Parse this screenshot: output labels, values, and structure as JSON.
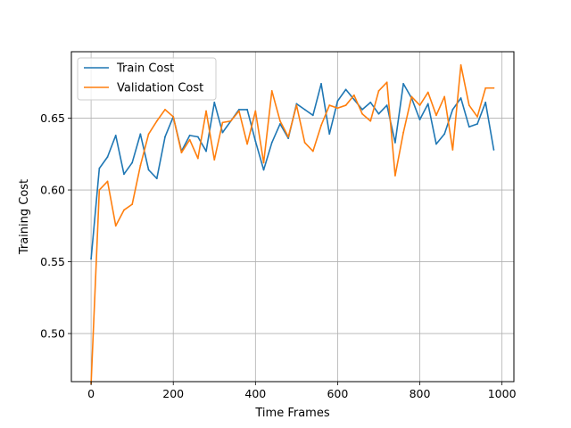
{
  "chart_data": {
    "type": "line",
    "title": "",
    "xlabel": "Time Frames",
    "ylabel": "Training Cost",
    "xlim": [
      -48,
      1029
    ],
    "ylim": [
      0.4665,
      0.6963
    ],
    "xticks": [
      0,
      200,
      400,
      600,
      800,
      1000
    ],
    "xtick_labels": [
      "0",
      "200",
      "400",
      "600",
      "800",
      "1000"
    ],
    "yticks": [
      0.5,
      0.55,
      0.6,
      0.65
    ],
    "ytick_labels": [
      "0.50",
      "0.55",
      "0.60",
      "0.65"
    ],
    "grid": true,
    "legend_position": "top-left",
    "x": [
      0,
      20,
      40,
      60,
      80,
      100,
      120,
      140,
      160,
      180,
      200,
      220,
      240,
      260,
      280,
      300,
      320,
      340,
      360,
      380,
      400,
      420,
      440,
      460,
      480,
      500,
      520,
      540,
      560,
      580,
      600,
      620,
      640,
      660,
      680,
      700,
      720,
      740,
      760,
      780,
      800,
      820,
      840,
      860,
      880,
      900,
      920,
      940,
      960,
      980
    ],
    "series": [
      {
        "name": "Train Cost",
        "color": "#1f77b4",
        "values": [
          0.552,
          0.615,
          0.623,
          0.638,
          0.611,
          0.619,
          0.639,
          0.614,
          0.608,
          0.637,
          0.651,
          0.627,
          0.638,
          0.637,
          0.627,
          0.661,
          0.64,
          0.648,
          0.656,
          0.656,
          0.634,
          0.614,
          0.633,
          0.646,
          0.636,
          0.66,
          0.656,
          0.652,
          0.674,
          0.639,
          0.662,
          0.67,
          0.663,
          0.656,
          0.661,
          0.653,
          0.659,
          0.633,
          0.674,
          0.664,
          0.649,
          0.66,
          0.632,
          0.639,
          0.656,
          0.664,
          0.644,
          0.646,
          0.661,
          0.628
        ]
      },
      {
        "name": "Validation Cost",
        "color": "#ff7f0e",
        "values": [
          0.465,
          0.6,
          0.606,
          0.575,
          0.586,
          0.59,
          0.617,
          0.639,
          0.648,
          0.656,
          0.651,
          0.626,
          0.635,
          0.622,
          0.655,
          0.621,
          0.647,
          0.648,
          0.655,
          0.632,
          0.655,
          0.619,
          0.669,
          0.648,
          0.637,
          0.659,
          0.633,
          0.627,
          0.645,
          0.659,
          0.657,
          0.659,
          0.666,
          0.653,
          0.648,
          0.669,
          0.675,
          0.61,
          0.64,
          0.665,
          0.659,
          0.668,
          0.652,
          0.665,
          0.628,
          0.687,
          0.659,
          0.651,
          0.671,
          0.671
        ]
      }
    ]
  }
}
